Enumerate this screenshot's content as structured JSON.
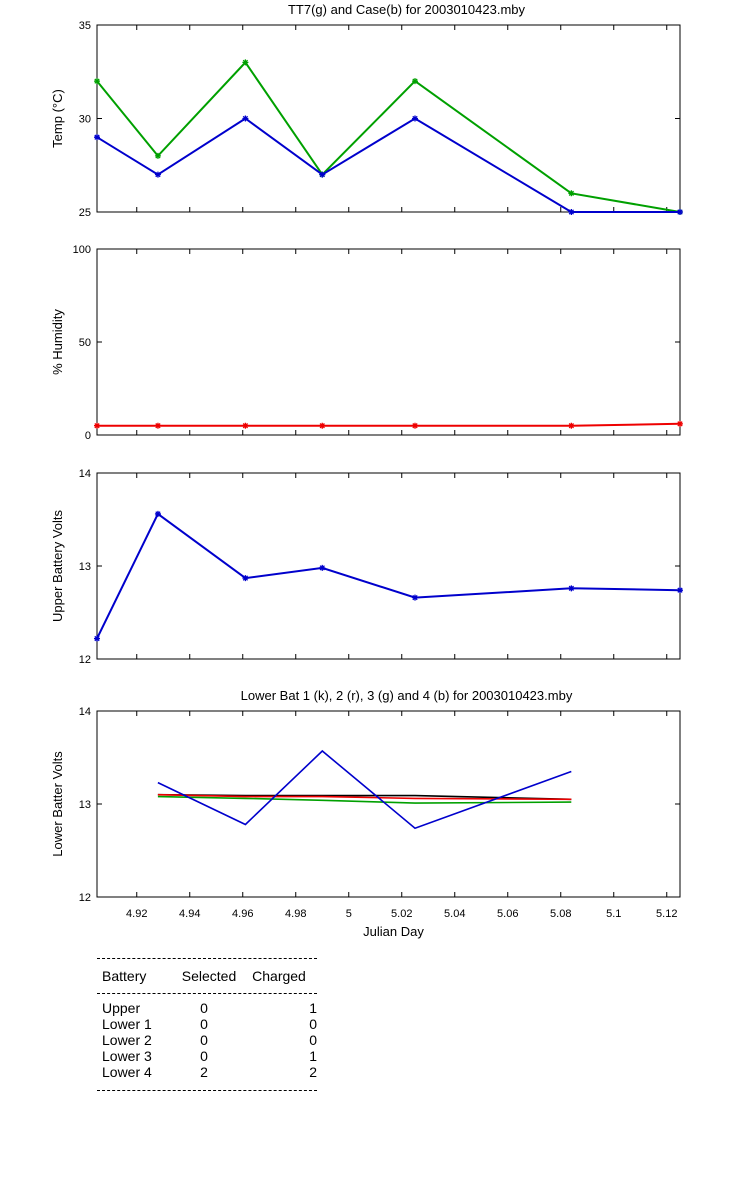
{
  "chart_data": [
    {
      "type": "line",
      "title": "TT7(g) and Case(b) for 2003010423.mby",
      "ylabel": "Temp  (°C)",
      "xlim": [
        4.905,
        5.125
      ],
      "ylim": [
        25,
        35
      ],
      "yticks": [
        25,
        30,
        35
      ],
      "series": [
        {
          "color": "#00a000",
          "marker": true,
          "x": [
            4.905,
            4.928,
            4.961,
            4.99,
            5.025,
            5.084,
            5.125
          ],
          "y": [
            32,
            28,
            33,
            27,
            32,
            26,
            25
          ]
        },
        {
          "color": "#0000cc",
          "marker": true,
          "x": [
            4.905,
            4.928,
            4.961,
            4.99,
            5.025,
            5.084,
            5.125
          ],
          "y": [
            29,
            27,
            30,
            27,
            30,
            25,
            25
          ]
        }
      ]
    },
    {
      "type": "line",
      "title": "",
      "ylabel": "% Humidity",
      "xlim": [
        4.905,
        5.125
      ],
      "ylim": [
        0,
        100
      ],
      "yticks": [
        0,
        50,
        100
      ],
      "series": [
        {
          "color": "#ee0000",
          "marker": true,
          "x": [
            4.905,
            4.928,
            4.961,
            4.99,
            5.025,
            5.084,
            5.125
          ],
          "y": [
            5,
            5,
            5,
            5,
            5,
            5,
            6
          ]
        }
      ]
    },
    {
      "type": "line",
      "title": "",
      "ylabel": "Upper Battery Volts",
      "xlim": [
        4.905,
        5.125
      ],
      "ylim": [
        12,
        14
      ],
      "yticks": [
        12,
        13,
        14
      ],
      "series": [
        {
          "color": "#0000cc",
          "marker": true,
          "x": [
            4.905,
            4.928,
            4.961,
            4.99,
            5.025,
            5.084,
            5.125
          ],
          "y": [
            12.22,
            13.56,
            12.87,
            12.98,
            12.66,
            12.76,
            12.74
          ]
        }
      ]
    },
    {
      "type": "line",
      "title": "Lower Bat 1 (k), 2 (r), 3 (g) and 4 (b) for 2003010423.mby",
      "ylabel": "Lower Batter Volts",
      "xlabel": "Julian Day",
      "xlim": [
        4.905,
        5.125
      ],
      "ylim": [
        12,
        14
      ],
      "yticks": [
        12,
        13,
        14
      ],
      "xticks": [
        "4.92",
        "4.94",
        "4.96",
        "4.98",
        "5",
        "5.02",
        "5.04",
        "5.06",
        "5.08",
        "5.1",
        "5.12"
      ],
      "series": [
        {
          "color": "#000000",
          "marker": false,
          "x": [
            4.928,
            4.961,
            4.99,
            5.025,
            5.084
          ],
          "y": [
            13.1,
            13.09,
            13.09,
            13.09,
            13.05
          ]
        },
        {
          "color": "#ee0000",
          "marker": false,
          "x": [
            4.928,
            4.961,
            4.99,
            5.025,
            5.084
          ],
          "y": [
            13.1,
            13.08,
            13.08,
            13.06,
            13.05
          ]
        },
        {
          "color": "#00a000",
          "marker": false,
          "x": [
            4.928,
            4.961,
            4.99,
            5.025,
            5.084
          ],
          "y": [
            13.08,
            13.06,
            13.04,
            13.01,
            13.02
          ]
        },
        {
          "color": "#0000cc",
          "marker": false,
          "x": [
            4.928,
            4.961,
            4.99,
            5.025,
            5.084
          ],
          "y": [
            13.23,
            12.78,
            13.57,
            12.74,
            13.35
          ]
        }
      ]
    }
  ],
  "battery_table": {
    "headers": [
      "Battery",
      "Selected",
      "Charged"
    ],
    "rows": [
      [
        "Upper",
        "0",
        "1"
      ],
      [
        "Lower 1",
        "0",
        "0"
      ],
      [
        "Lower 2",
        "0",
        "0"
      ],
      [
        "Lower 3",
        "0",
        "1"
      ],
      [
        "Lower 4",
        "2",
        "2"
      ]
    ]
  }
}
